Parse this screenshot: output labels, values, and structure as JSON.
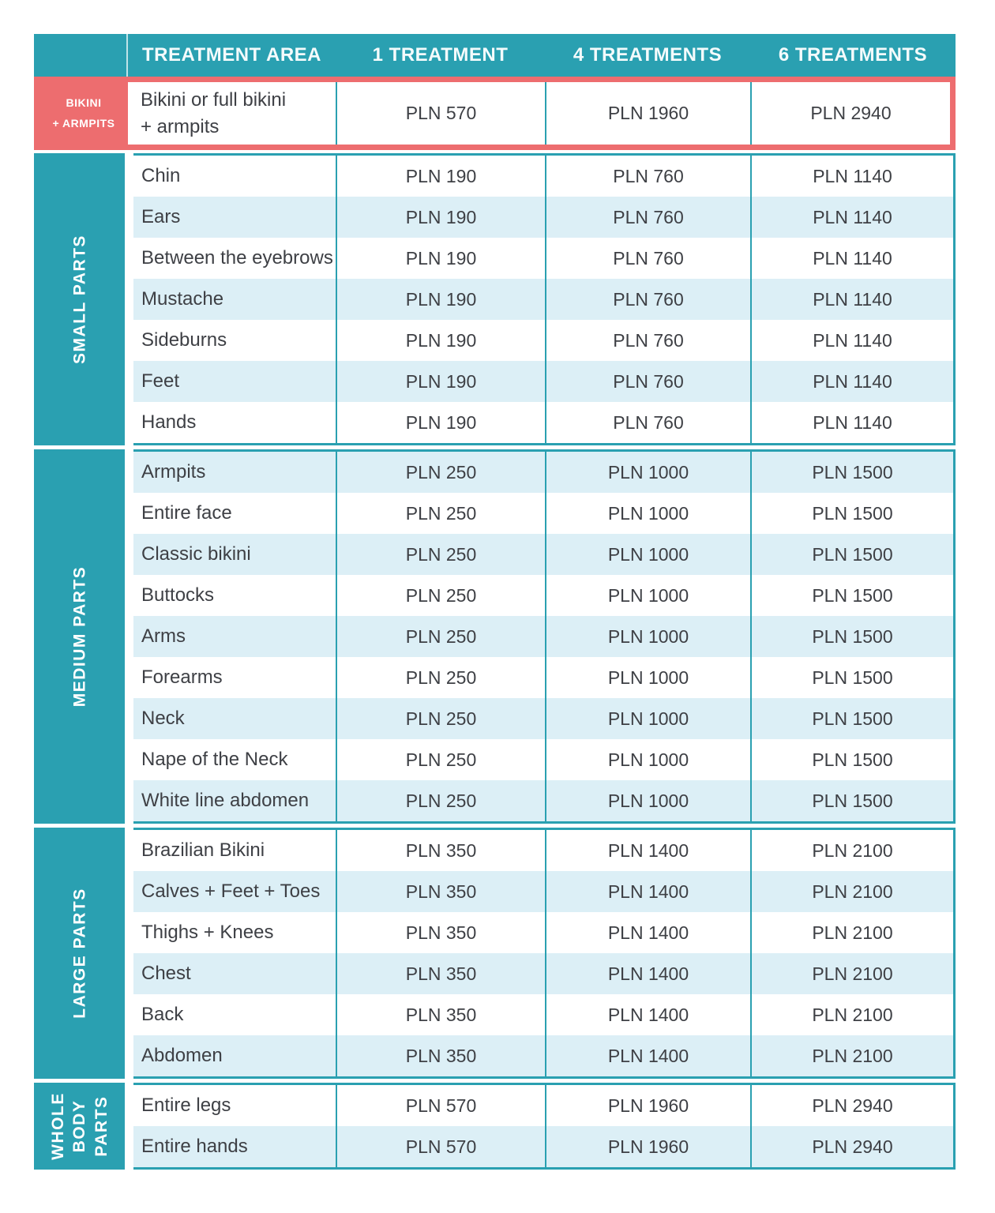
{
  "header": {
    "corner": "",
    "cols": [
      "TREATMENT AREA",
      "1 TREATMENT",
      "4 TREATMENTS",
      "6 TREATMENTS"
    ]
  },
  "featured": {
    "side_label_lines": [
      "BIKINI",
      "+ ARMPITS"
    ],
    "area_lines": [
      "Bikini or full bikini",
      "+ armpits"
    ],
    "prices": [
      "PLN 570",
      "PLN 1960",
      "PLN 2940"
    ]
  },
  "sections": [
    {
      "id": "small-parts",
      "label_lines": [
        "SMALL PARTS"
      ],
      "rows": [
        [
          "Chin",
          "PLN 190",
          "PLN 760",
          "PLN 1140"
        ],
        [
          "Ears",
          "PLN 190",
          "PLN 760",
          "PLN 1140"
        ],
        [
          "Between the eyebrows",
          "PLN 190",
          "PLN 760",
          "PLN 1140"
        ],
        [
          "Mustache",
          "PLN 190",
          "PLN 760",
          "PLN 1140"
        ],
        [
          "Sideburns",
          "PLN 190",
          "PLN 760",
          "PLN 1140"
        ],
        [
          "Feet",
          "PLN 190",
          "PLN 760",
          "PLN 1140"
        ],
        [
          "Hands",
          "PLN 190",
          "PLN 760",
          "PLN 1140"
        ]
      ]
    },
    {
      "id": "medium-parts",
      "label_lines": [
        "MEDIUM PARTS"
      ],
      "rows": [
        [
          "Armpits",
          "PLN 250",
          "PLN 1000",
          "PLN 1500"
        ],
        [
          "Entire face",
          "PLN 250",
          "PLN 1000",
          "PLN 1500"
        ],
        [
          "Classic bikini",
          "PLN 250",
          "PLN 1000",
          "PLN 1500"
        ],
        [
          "Buttocks",
          "PLN 250",
          "PLN 1000",
          "PLN 1500"
        ],
        [
          "Arms",
          "PLN 250",
          "PLN 1000",
          "PLN 1500"
        ],
        [
          "Forearms",
          "PLN 250",
          "PLN 1000",
          "PLN 1500"
        ],
        [
          "Neck",
          "PLN 250",
          "PLN 1000",
          "PLN 1500"
        ],
        [
          "Nape of the Neck",
          "PLN 250",
          "PLN 1000",
          "PLN 1500"
        ],
        [
          "White line abdomen",
          "PLN 250",
          "PLN 1000",
          "PLN 1500"
        ]
      ]
    },
    {
      "id": "large-parts",
      "label_lines": [
        "LARGE PARTS"
      ],
      "rows": [
        [
          "Brazilian Bikini",
          "PLN 350",
          "PLN 1400",
          "PLN 2100"
        ],
        [
          "Calves + Feet + Toes",
          "PLN 350",
          "PLN 1400",
          "PLN 2100"
        ],
        [
          "Thighs + Knees",
          "PLN 350",
          "PLN 1400",
          "PLN 2100"
        ],
        [
          "Chest",
          "PLN 350",
          "PLN 1400",
          "PLN 2100"
        ],
        [
          "Back",
          "PLN 350",
          "PLN 1400",
          "PLN 2100"
        ],
        [
          "Abdomen",
          "PLN 350",
          "PLN 1400",
          "PLN 2100"
        ]
      ]
    },
    {
      "id": "whole-body-parts",
      "label_lines": [
        "WHOLE",
        "BODY",
        "PARTS"
      ],
      "rows": [
        [
          "Entire legs",
          "PLN 570",
          "PLN 1960",
          "PLN 2940"
        ],
        [
          "Entire hands",
          "PLN 570",
          "PLN 1960",
          "PLN 2940"
        ]
      ]
    }
  ],
  "colors": {
    "teal": "#2aa0b1",
    "coral": "#ed6d6f",
    "stripe_blue": "#dceff6",
    "text_dark": "#3e4045",
    "header_text": "#ffffff"
  }
}
